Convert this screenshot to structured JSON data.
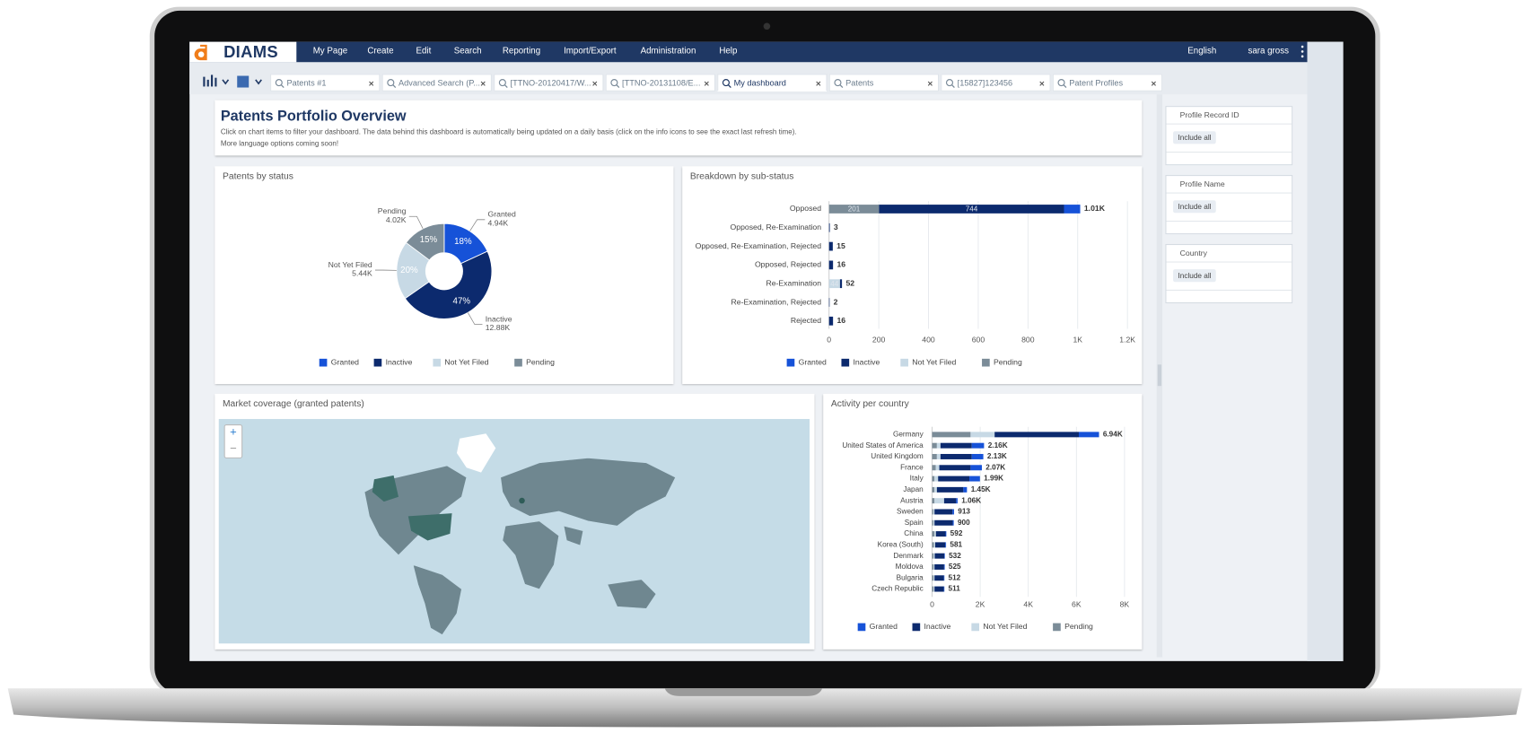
{
  "app": {
    "logo": "DIAMS",
    "menu": [
      "My Page",
      "Create",
      "Edit",
      "Search",
      "Reporting",
      "Import/Export",
      "Administration",
      "Help"
    ],
    "language": "English",
    "user": "sara gross"
  },
  "tabs": [
    "Patents #1",
    "Advanced Search (P...",
    "[TTNO-20120417/W...",
    "[TTNO-20131108/E...",
    "My dashboard",
    "Patents",
    "[15827]123456",
    "Patent Profiles"
  ],
  "active_tab": 4,
  "dashboard": {
    "title": "Patents Portfolio Overview",
    "description": [
      "Click on chart items to filter your dashboard. The data behind this dashboard is automatically being updated on a daily basis (click on the info icons to see the exact last refresh time).",
      "More language options coming soon!"
    ]
  },
  "chart_data": [
    {
      "type": "pie",
      "title": "Patents by status",
      "donut": true,
      "categories": [
        "Granted",
        "Inactive",
        "Not Yet Filed",
        "Pending"
      ],
      "values": [
        4940,
        12880,
        5440,
        4020
      ],
      "value_labels": [
        "4.94K",
        "12.88K",
        "5.44K",
        "4.02K"
      ],
      "percent_labels": [
        "18%",
        "47%",
        "20%",
        "15%"
      ],
      "colors": [
        "#1652d8",
        "#0c2a6e",
        "#c7d9e5",
        "#7b8c98"
      ]
    },
    {
      "type": "hbar",
      "title": "Breakdown by sub-status",
      "stacked": true,
      "grid": true,
      "categories": [
        "Opposed",
        "Opposed, Re-Examination",
        "Opposed, Re-Examination, Rejected",
        "Opposed, Rejected",
        "Re-Examination",
        "Re-Examination, Rejected",
        "Rejected"
      ],
      "series": [
        {
          "name": "Granted",
          "color": "#1652d8",
          "values": [
            65,
            0,
            0,
            0,
            0,
            0,
            0
          ]
        },
        {
          "name": "Inactive",
          "color": "#0c2a6e",
          "values": [
            744,
            3,
            15,
            16,
            8,
            2,
            16
          ],
          "value_labels": [
            "744",
            null,
            null,
            null,
            null,
            null,
            null
          ]
        },
        {
          "name": "Not Yet Filed",
          "color": "#c7d9e5",
          "values": [
            0,
            0,
            0,
            0,
            44,
            0,
            0
          ],
          "value_labels": [
            null,
            null,
            null,
            null,
            "44",
            null,
            null
          ]
        },
        {
          "name": "Pending",
          "color": "#7b8c98",
          "values": [
            201,
            0,
            0,
            0,
            0,
            0,
            0
          ],
          "value_labels": [
            "201",
            null,
            null,
            null,
            null,
            null,
            null
          ]
        }
      ],
      "total_labels": [
        "1.01K",
        "3",
        "15",
        "16",
        "52",
        "2",
        "16"
      ],
      "xlim": [
        0,
        1200
      ],
      "xticks": [
        0,
        200,
        400,
        600,
        800,
        {
          "value": 1000,
          "label": "1K"
        },
        {
          "value": 1200,
          "label": "1.2K"
        }
      ]
    },
    {
      "type": "hbar",
      "title": "Activity per country",
      "stacked": true,
      "grid": true,
      "categories": [
        "Germany",
        "United States of America",
        "United Kingdom",
        "France",
        "Italy",
        "Japan",
        "Austria",
        "Sweden",
        "Spain",
        "China",
        "Korea (South)",
        "Denmark",
        "Moldova",
        "Bulgaria",
        "Czech Republic"
      ],
      "series": [
        {
          "name": "Granted",
          "color": "#1652d8",
          "values": [
            840,
            510,
            480,
            470,
            440,
            150,
            60,
            63,
            40,
            32,
            31,
            22,
            25,
            22,
            21
          ]
        },
        {
          "name": "Inactive",
          "color": "#0c2a6e",
          "values": [
            3500,
            1300,
            1300,
            1300,
            1300,
            1100,
            500,
            750,
            760,
            400,
            420,
            400,
            400,
            390,
            390
          ]
        },
        {
          "name": "Not Yet Filed",
          "color": "#c7d9e5",
          "values": [
            1000,
            150,
            150,
            150,
            150,
            100,
            400,
            50,
            50,
            60,
            50,
            50,
            40,
            40,
            40
          ]
        },
        {
          "name": "Pending",
          "color": "#7b8c98",
          "values": [
            1600,
            200,
            200,
            150,
            100,
            100,
            100,
            50,
            50,
            100,
            80,
            60,
            60,
            60,
            60
          ]
        }
      ],
      "total_labels": [
        "6.94K",
        "2.16K",
        "2.13K",
        "2.07K",
        "1.99K",
        "1.45K",
        "1.06K",
        "913",
        "900",
        "592",
        "581",
        "532",
        "525",
        "512",
        "511"
      ],
      "xlim": [
        0,
        8000
      ],
      "xticks": [
        0,
        {
          "value": 2000,
          "label": "2K"
        },
        {
          "value": 4000,
          "label": "4K"
        },
        {
          "value": 6000,
          "label": "6K"
        },
        {
          "value": 8000,
          "label": "8K"
        }
      ]
    }
  ],
  "map": {
    "title": "Market coverage (granted patents)",
    "zoom_in": "+",
    "zoom_out": "−"
  },
  "filters": [
    {
      "label": "Profile Record ID",
      "button": "Include all"
    },
    {
      "label": "Profile Name",
      "button": "Include all"
    },
    {
      "label": "Country",
      "button": "Include all"
    }
  ]
}
